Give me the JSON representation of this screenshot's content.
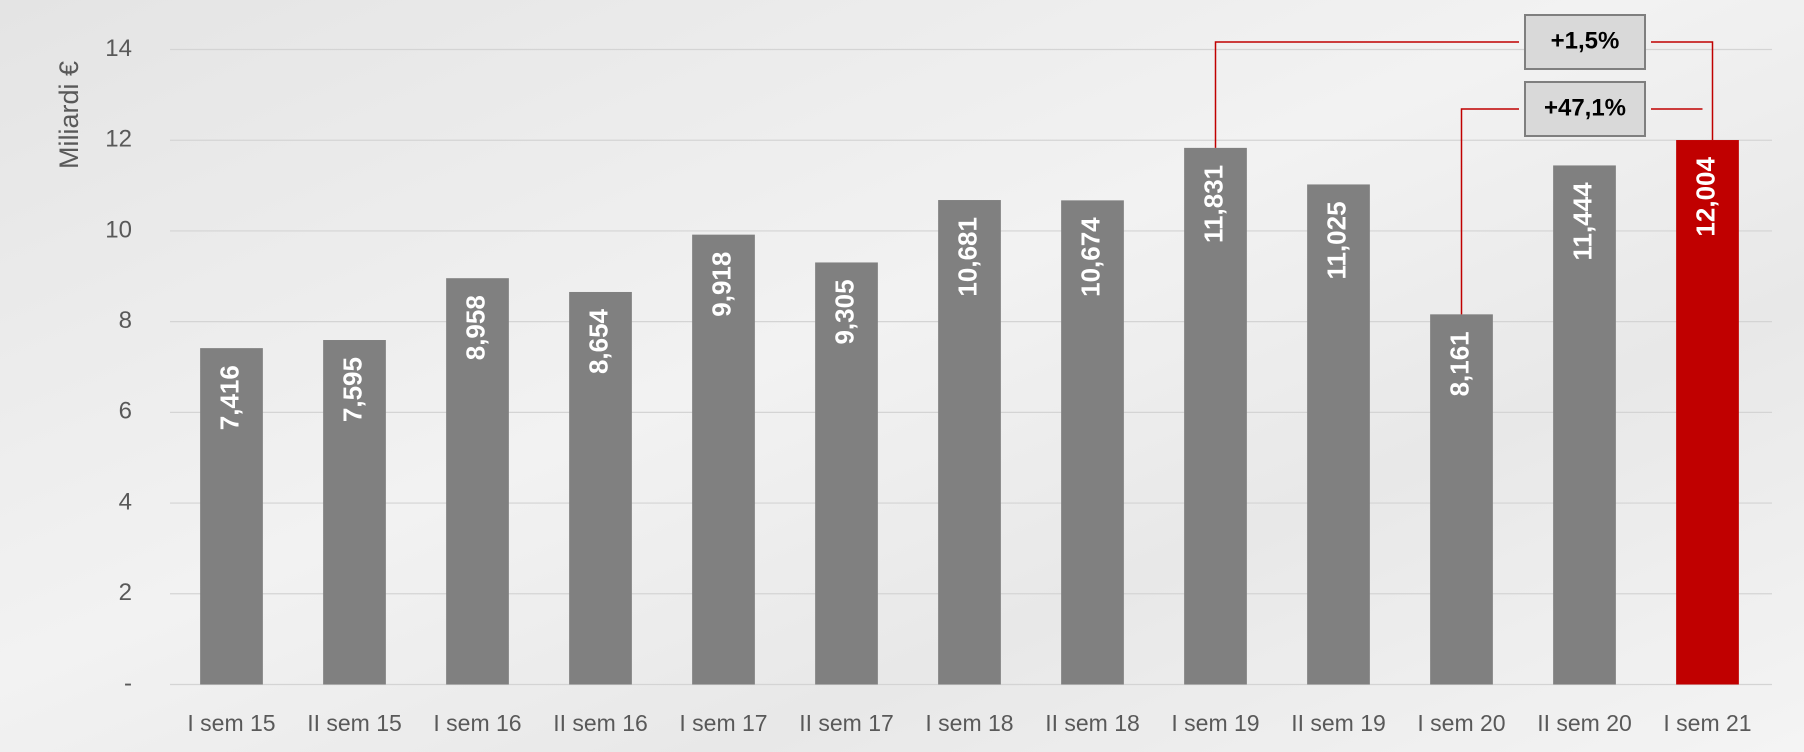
{
  "chart_data": {
    "type": "bar",
    "y_axis_label": "Miliardi €",
    "categories": [
      "I sem 15",
      "II sem 15",
      "I sem 16",
      "II sem 16",
      "I sem 17",
      "II sem 17",
      "I sem 18",
      "II sem 18",
      "I sem 19",
      "II sem 19",
      "I sem 20",
      "II sem 20",
      "I sem 21"
    ],
    "values": [
      7.416,
      7.595,
      8.958,
      8.654,
      9.918,
      9.305,
      10.681,
      10.674,
      11.831,
      11.025,
      8.161,
      11.444,
      12.004
    ],
    "value_labels": [
      "7,416",
      "7,595",
      "8,958",
      "8,654",
      "9,918",
      "9,305",
      "10,681",
      "10,674",
      "11,831",
      "11,025",
      "8,161",
      "11,444",
      "12,004"
    ],
    "colors": [
      "#808080",
      "#808080",
      "#808080",
      "#808080",
      "#808080",
      "#808080",
      "#808080",
      "#808080",
      "#808080",
      "#808080",
      "#808080",
      "#808080",
      "#c00000"
    ],
    "ylim": [
      0,
      14
    ],
    "yticks": [
      {
        "value": 0,
        "label": "-"
      },
      2,
      4,
      6,
      8,
      10,
      12,
      14
    ],
    "grid": true,
    "annotations": [
      {
        "text": "+1,5%"
      },
      {
        "text": "+47,1%"
      }
    ]
  }
}
